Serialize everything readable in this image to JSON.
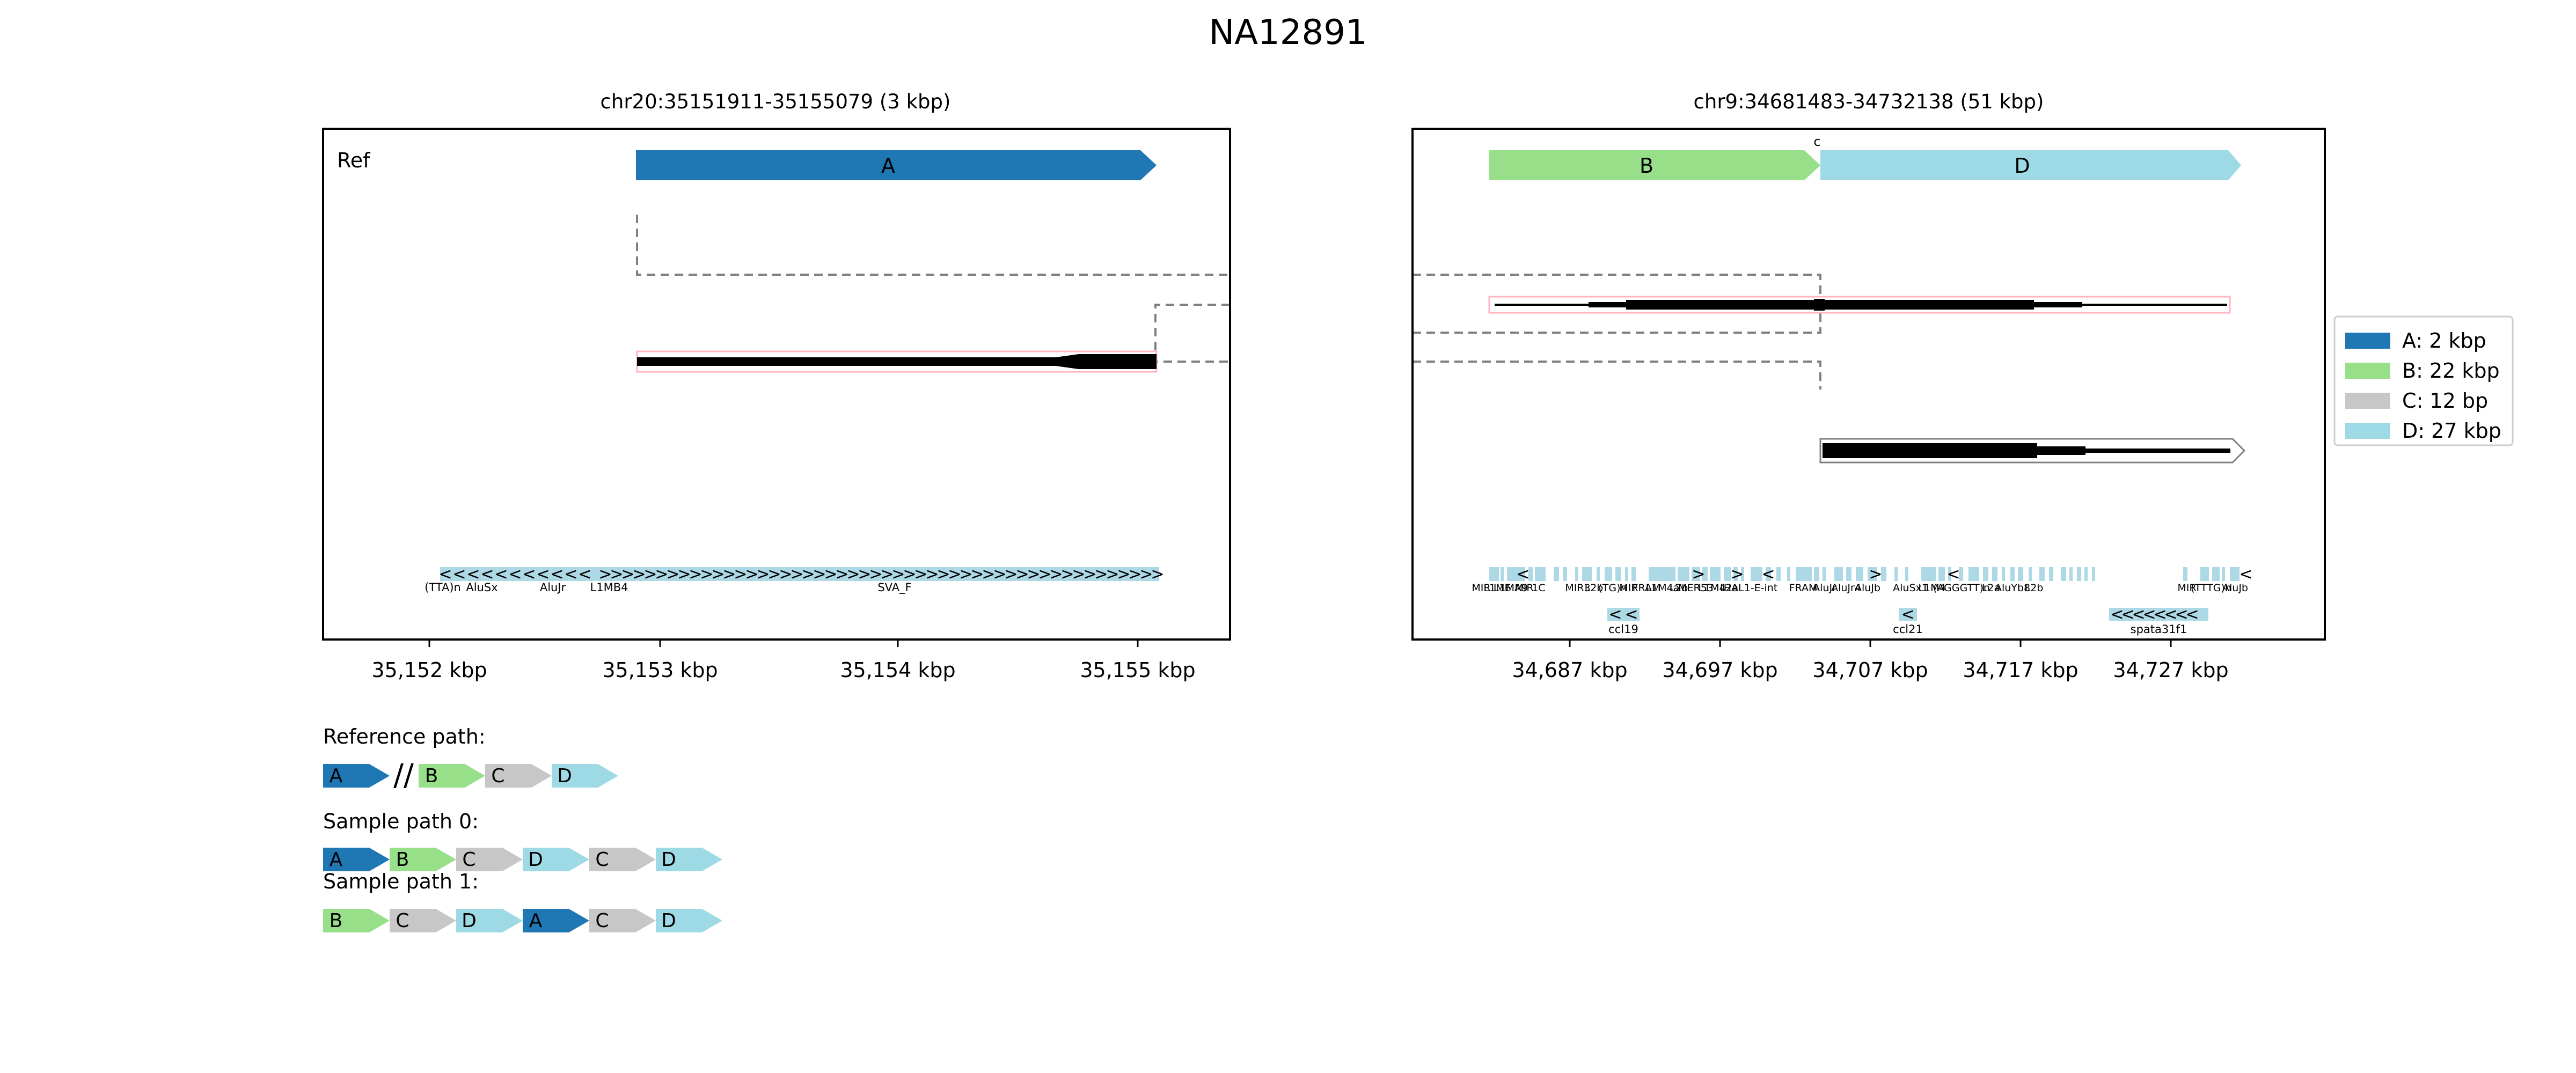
{
  "title": "NA12891",
  "colors": {
    "A": "#1f77b4",
    "B": "#98df8a",
    "C": "#c7c7c7",
    "D": "#9edae5",
    "repeat": "#add8e6",
    "read_outline": "#ffb6c1",
    "frame": "#000000",
    "connector": "#808080"
  },
  "left_panel": {
    "title": "chr20:35151911-35155079 (3 kbp)",
    "ref_label": "Ref",
    "segment": {
      "label": "A",
      "color_key": "A"
    },
    "x_ticks": [
      "35,152 kbp",
      "35,153 kbp",
      "35,154 kbp",
      "35,155 kbp"
    ],
    "repeats": [
      {
        "label": "(TTA)n",
        "strand": ""
      },
      {
        "label": "AluSx",
        "strand": "<"
      },
      {
        "label": "AluJr",
        "strand": "<"
      },
      {
        "label": "L1MB4",
        "strand": ">"
      },
      {
        "label": "SVA_F",
        "strand": ">"
      }
    ]
  },
  "right_panel": {
    "title": "chr9:34681483-34732138 (51 kbp)",
    "segments": [
      {
        "label": "B",
        "color_key": "B"
      },
      {
        "label": "D",
        "color_key": "D"
      }
    ],
    "breakpoint_label": "c",
    "x_ticks": [
      "34,687 kbp",
      "34,697 kbp",
      "34,707 kbp",
      "34,717 kbp",
      "34,727 kbp"
    ],
    "repeat_labels": [
      "MIR",
      "L1ME",
      "L1MA9",
      "MIR",
      "1C",
      "MIR3",
      "L2b",
      "(TG)n",
      "MIR",
      "FRAM",
      "L1M4a",
      "L2b",
      "MER53",
      "L1M4",
      "L2a",
      "HAL1-E-int",
      "FRAM",
      "AluJr",
      "AluJr4",
      "AluJb",
      "AluSx1",
      "L1M4",
      "(AGGGTT)n",
      "L2a",
      "AluYb8",
      "L2b",
      "MIR",
      "(TTTG)n",
      "AluJb"
    ],
    "genes": [
      "ccl19",
      "ccl21",
      "spata31f1"
    ]
  },
  "legend": [
    {
      "key": "A",
      "label": "A: 2 kbp"
    },
    {
      "key": "B",
      "label": "B: 22 kbp"
    },
    {
      "key": "C",
      "label": "C: 12 bp"
    },
    {
      "key": "D",
      "label": "D: 27 kbp"
    }
  ],
  "paths": [
    {
      "title": "Reference path:",
      "blocks": [
        "A",
        "//",
        "B",
        "C",
        "D"
      ]
    },
    {
      "title": "Sample path 0:",
      "blocks": [
        "A",
        "B",
        "C",
        "D",
        "C",
        "D"
      ]
    },
    {
      "title": "Sample path 1:",
      "blocks": [
        "B",
        "C",
        "D",
        "A",
        "C",
        "D"
      ]
    }
  ]
}
